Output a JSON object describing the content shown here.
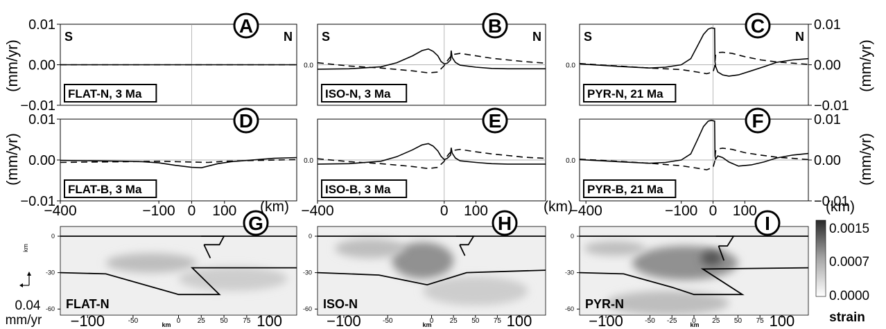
{
  "figure": {
    "velocity_ylabel": "(mm/yr)",
    "km_unit": "(km)",
    "cs_axis_label": "km",
    "scale_value": "0.04",
    "scale_unit": "mm/yr",
    "strain_label": "strain"
  },
  "chart_data": [
    {
      "id": "A",
      "type": "line",
      "letter": "A",
      "label": "FLAT-N, 3 Ma",
      "dir_left": "S",
      "dir_right": "N",
      "xlim": [
        -400,
        320
      ],
      "ylim": [
        -0.01,
        0.01
      ],
      "yticks": [
        "0.01",
        "0.00",
        "−0.01"
      ],
      "yticks_side": "left",
      "xticks": [],
      "series": [
        {
          "style": "solid",
          "x": [
            -400,
            320
          ],
          "y": [
            0,
            0
          ]
        },
        {
          "style": "dashed",
          "x": [
            -400,
            320
          ],
          "y": [
            0,
            0
          ]
        }
      ]
    },
    {
      "id": "B",
      "type": "line",
      "letter": "B",
      "label": "ISO-N, 3 Ma",
      "dir_left": "S",
      "dir_right": "N",
      "xlim": [
        -400,
        320
      ],
      "ylim": [
        -0.01,
        0.01
      ],
      "yticks": [],
      "ytick_inner": "0.0",
      "xticks": [],
      "series": [
        {
          "style": "solid",
          "x": [
            -400,
            -300,
            -200,
            -150,
            -100,
            -70,
            -50,
            -35,
            -20,
            -10,
            0,
            10,
            20,
            22,
            25,
            35,
            50,
            100,
            150,
            200,
            250,
            320
          ],
          "y": [
            -0.0011,
            -0.001,
            -0.0005,
            0.0005,
            0.0022,
            0.0035,
            0.0039,
            0.0033,
            0.0022,
            0.0008,
            0.0002,
            0.0004,
            0.0012,
            0.0035,
            0.0018,
            0.0006,
            -0.0001,
            -0.0006,
            -0.0009,
            -0.001,
            -0.001,
            -0.001
          ]
        },
        {
          "style": "dashed",
          "x": [
            -400,
            -300,
            -200,
            -100,
            -50,
            -20,
            0,
            5,
            15,
            25,
            50,
            100,
            150,
            200,
            250,
            320
          ],
          "y": [
            0.0005,
            -0.0003,
            -0.0008,
            -0.0015,
            -0.002,
            -0.0018,
            -0.0002,
            0.0005,
            0.0015,
            0.0025,
            0.0028,
            0.0022,
            0.0016,
            0.0012,
            0.0008,
            0.0004
          ]
        }
      ]
    },
    {
      "id": "C",
      "type": "line",
      "letter": "C",
      "label": "PYR-N, 21 Ma",
      "dir_left": "S",
      "dir_right": "N",
      "xlim": [
        -420,
        300
      ],
      "ylim": [
        -0.01,
        0.01
      ],
      "yticks": [
        "0.01",
        "0.00",
        "−0.01"
      ],
      "yticks_side": "right",
      "ytick_inner": "0.0",
      "xticks": [],
      "series": [
        {
          "style": "solid",
          "x": [
            -420,
            -300,
            -200,
            -150,
            -100,
            -70,
            -50,
            -30,
            -15,
            -5,
            5,
            6,
            8,
            15,
            30,
            50,
            80,
            120,
            160,
            200,
            250,
            300
          ],
          "y": [
            0.0002,
            -0.0004,
            -0.0008,
            -0.0006,
            0,
            0.0015,
            0.0045,
            0.0075,
            0.0088,
            0.0091,
            0.009,
            0.0008,
            -0.0004,
            -0.0018,
            -0.0025,
            -0.0028,
            -0.0025,
            -0.0015,
            -0.0005,
            0.0006,
            0.0012,
            0.0015
          ]
        },
        {
          "style": "dashed",
          "x": [
            -420,
            -300,
            -200,
            -100,
            -50,
            -20,
            0,
            5,
            8,
            15,
            30,
            60,
            100,
            150,
            200,
            250,
            300
          ],
          "y": [
            0.0003,
            -0.0003,
            -0.0008,
            -0.0012,
            -0.0018,
            -0.0022,
            -0.0018,
            -0.0005,
            0.0025,
            0.003,
            0.0031,
            0.0028,
            0.002,
            0.0012,
            0.0007,
            0.0004,
            0.0001
          ]
        }
      ]
    },
    {
      "id": "D",
      "type": "line",
      "letter": "D",
      "label": "FLAT-B, 3 Ma",
      "dir_left": "",
      "dir_right": "",
      "xlim": [
        -400,
        320
      ],
      "ylim": [
        -0.01,
        0.01
      ],
      "yticks": [
        "0.01",
        "0.00",
        "−0.01"
      ],
      "yticks_side": "left",
      "xticks": [
        {
          "v": -400,
          "t": "−400"
        },
        {
          "v": -100,
          "t": "−100"
        },
        {
          "v": 0,
          "t": "0"
        },
        {
          "v": 100,
          "t": "100"
        }
      ],
      "series": [
        {
          "style": "solid",
          "x": [
            -400,
            -300,
            -200,
            -150,
            -100,
            -50,
            0,
            30,
            50,
            80,
            120,
            200,
            250,
            320
          ],
          "y": [
            -0.0001,
            -0.0002,
            -0.0003,
            -0.0004,
            -0.0007,
            -0.0013,
            -0.0018,
            -0.0019,
            -0.0015,
            -0.0009,
            -0.0004,
            0.0001,
            0.0004,
            0.0006
          ]
        },
        {
          "style": "dashed",
          "x": [
            -400,
            -300,
            -200,
            -100,
            0,
            50,
            100,
            200,
            320
          ],
          "y": [
            -0.0006,
            -0.0005,
            -0.0004,
            -0.0003,
            -0.0005,
            -0.0006,
            -0.0003,
            -0.0001,
            0.0001
          ]
        }
      ]
    },
    {
      "id": "E",
      "type": "line",
      "letter": "E",
      "label": "ISO-B, 3 Ma",
      "dir_left": "",
      "dir_right": "",
      "xlim": [
        -400,
        320
      ],
      "ylim": [
        -0.01,
        0.01
      ],
      "yticks": [],
      "ytick_inner": "0.0",
      "xticks": [
        {
          "v": -400,
          "t": "−400"
        },
        {
          "v": 0,
          "t": "0"
        },
        {
          "v": 100,
          "t": "100"
        }
      ],
      "series": [
        {
          "style": "solid",
          "x": [
            -400,
            -300,
            -200,
            -150,
            -100,
            -70,
            -50,
            -35,
            -20,
            -10,
            0,
            10,
            20,
            22,
            25,
            35,
            50,
            100,
            150,
            200,
            250,
            320
          ],
          "y": [
            -0.001,
            -0.0009,
            -0.0003,
            0.0008,
            0.0025,
            0.0037,
            0.004,
            0.0034,
            0.0022,
            0.0009,
            0.0001,
            0.0004,
            0.0012,
            0.003,
            0.0017,
            0.0005,
            -0.0002,
            -0.0006,
            -0.0009,
            -0.001,
            -0.001,
            -0.001
          ]
        },
        {
          "style": "dashed",
          "x": [
            -400,
            -300,
            -200,
            -100,
            -50,
            -20,
            0,
            5,
            15,
            25,
            50,
            100,
            150,
            200,
            250,
            320
          ],
          "y": [
            0.0003,
            -0.0004,
            -0.0009,
            -0.0016,
            -0.0021,
            -0.0018,
            -0.0003,
            0.0005,
            0.0015,
            0.0023,
            0.0026,
            0.002,
            0.0015,
            0.0011,
            0.0007,
            0.0004
          ]
        }
      ]
    },
    {
      "id": "F",
      "type": "line",
      "letter": "F",
      "label": "PYR-B, 21 Ma",
      "dir_left": "",
      "dir_right": "",
      "xlim": [
        -420,
        300
      ],
      "ylim": [
        -0.01,
        0.01
      ],
      "yticks": [
        "0.01",
        "0.00",
        "−0.01"
      ],
      "yticks_side": "right",
      "ytick_inner": "0.0",
      "xticks": [
        {
          "v": -400,
          "t": "−400"
        },
        {
          "v": -100,
          "t": "−100"
        },
        {
          "v": 0,
          "t": "0"
        },
        {
          "v": 100,
          "t": "100"
        }
      ],
      "series": [
        {
          "style": "solid",
          "x": [
            -420,
            -300,
            -200,
            -150,
            -100,
            -70,
            -50,
            -30,
            -15,
            -5,
            5,
            6,
            8,
            15,
            30,
            50,
            80,
            120,
            160,
            200,
            250,
            300
          ],
          "y": [
            0.0001,
            -0.0004,
            -0.0008,
            -0.0006,
            0,
            0.0015,
            0.0048,
            0.0082,
            0.0095,
            0.0097,
            0.0095,
            0.001,
            0.0002,
            0.001,
            0.0006,
            -0.0005,
            -0.0015,
            -0.0012,
            -0.0005,
            0.0005,
            0.0012,
            0.0016
          ]
        },
        {
          "style": "dashed",
          "x": [
            -420,
            -300,
            -200,
            -100,
            -50,
            -20,
            0,
            5,
            8,
            15,
            30,
            60,
            100,
            150,
            200,
            250,
            300
          ],
          "y": [
            0.0002,
            -0.0003,
            -0.0008,
            -0.0014,
            -0.002,
            -0.0024,
            -0.0018,
            -0.0005,
            0.0022,
            0.0027,
            0.0029,
            0.0026,
            0.0018,
            0.0012,
            0.0007,
            0.0004,
            0.0001
          ]
        }
      ]
    },
    {
      "id": "G",
      "type": "cross-section",
      "letter": "G",
      "label": "FLAT-N",
      "xlim": [
        -130,
        130
      ],
      "ylim": [
        -65,
        8
      ],
      "xticks": [
        {
          "v": -100,
          "t": "−100",
          "big": true
        },
        {
          "v": -50,
          "t": "-50"
        },
        {
          "v": 0,
          "t": "0"
        },
        {
          "v": 25,
          "t": "25"
        },
        {
          "v": 50,
          "t": "50"
        },
        {
          "v": 75,
          "t": "75"
        },
        {
          "v": 100,
          "t": "100",
          "big": true
        }
      ],
      "yticks": [
        {
          "v": 0,
          "t": "0"
        },
        {
          "v": -30,
          "t": "-30"
        },
        {
          "v": -60,
          "t": "-60"
        }
      ],
      "lines": [
        {
          "x": [
            -130,
            130
          ],
          "y": [
            0,
            0
          ]
        },
        {
          "x": [
            25,
            50,
            45,
            28
          ],
          "y": [
            0,
            0,
            -7,
            -7
          ]
        },
        {
          "x": [
            28,
            35
          ],
          "y": [
            -7,
            -18
          ]
        },
        {
          "x": [
            -130,
            -80,
            0,
            45,
            15,
            130
          ],
          "y": [
            -30,
            -31,
            -48,
            -48,
            -26,
            -26
          ]
        }
      ],
      "shading": [
        {
          "cx": -30,
          "cy": -22,
          "rx": 50,
          "ry": 8,
          "v": 0.3
        },
        {
          "cx": 60,
          "cy": -35,
          "rx": 60,
          "ry": 10,
          "v": 0.2
        }
      ]
    },
    {
      "id": "H",
      "type": "cross-section",
      "letter": "H",
      "label": "ISO-N",
      "xlim": [
        -130,
        130
      ],
      "ylim": [
        -65,
        8
      ],
      "xticks": [
        {
          "v": -100,
          "t": "−100",
          "big": true
        },
        {
          "v": -50,
          "t": "-50"
        },
        {
          "v": 0,
          "t": "0"
        },
        {
          "v": 25,
          "t": "25"
        },
        {
          "v": 50,
          "t": "50"
        },
        {
          "v": 75,
          "t": "75"
        },
        {
          "v": 100,
          "t": "100",
          "big": true
        }
      ],
      "yticks": [
        {
          "v": 0,
          "t": "0"
        },
        {
          "v": -30,
          "t": "-30"
        },
        {
          "v": -60,
          "t": "-60"
        }
      ],
      "lines": [
        {
          "x": [
            -130,
            130
          ],
          "y": [
            0,
            0
          ]
        },
        {
          "x": [
            28,
            48,
            42,
            32
          ],
          "y": [
            0,
            0,
            -7,
            -7
          ]
        },
        {
          "x": [
            32,
            38
          ],
          "y": [
            -7,
            -16
          ]
        },
        {
          "x": [
            -130,
            -60,
            -5,
            40,
            130
          ],
          "y": [
            -30,
            -32,
            -40,
            -30,
            -28
          ]
        }
      ],
      "shading": [
        {
          "cx": -10,
          "cy": -20,
          "rx": 35,
          "ry": 15,
          "v": 0.6
        },
        {
          "cx": -70,
          "cy": -10,
          "rx": 40,
          "ry": 8,
          "v": 0.3
        },
        {
          "cx": 50,
          "cy": -45,
          "rx": 60,
          "ry": 12,
          "v": 0.2
        }
      ]
    },
    {
      "id": "I",
      "type": "cross-section",
      "letter": "I",
      "label": "PYR-N",
      "xlim": [
        -130,
        130
      ],
      "ylim": [
        -65,
        8
      ],
      "xticks": [
        {
          "v": -100,
          "t": "−100",
          "big": true
        },
        {
          "v": -50,
          "t": "-50"
        },
        {
          "v": -25,
          "t": "-25"
        },
        {
          "v": 0,
          "t": "0"
        },
        {
          "v": 25,
          "t": "25"
        },
        {
          "v": 50,
          "t": "50"
        },
        {
          "v": 75,
          "t": "75"
        },
        {
          "v": 100,
          "t": "100",
          "big": true
        }
      ],
      "yticks": [
        {
          "v": 0,
          "t": "0"
        },
        {
          "v": -30,
          "t": "-30"
        },
        {
          "v": -60,
          "t": "-60"
        }
      ],
      "lines": [
        {
          "x": [
            -130,
            130
          ],
          "y": [
            0,
            0
          ]
        },
        {
          "x": [
            25,
            45,
            38,
            28
          ],
          "y": [
            0,
            0,
            -8,
            -8
          ]
        },
        {
          "x": [
            28,
            34
          ],
          "y": [
            -8,
            -20
          ]
        },
        {
          "x": [
            -130,
            -80,
            -25,
            0,
            55,
            10,
            130
          ],
          "y": [
            -30,
            -31,
            -42,
            -48,
            -48,
            -27,
            -26
          ]
        }
      ],
      "shading": [
        {
          "cx": -10,
          "cy": -22,
          "rx": 60,
          "ry": 14,
          "v": 0.6
        },
        {
          "cx": 20,
          "cy": -18,
          "rx": 12,
          "ry": 6,
          "v": 1.0
        },
        {
          "cx": -30,
          "cy": -55,
          "rx": 70,
          "ry": 10,
          "v": 0.3
        },
        {
          "cx": -90,
          "cy": -10,
          "rx": 35,
          "ry": 6,
          "v": 0.3
        }
      ]
    },
    {
      "id": "colorbar",
      "type": "heatmap",
      "title": "strain",
      "ticks": [
        "0.0015",
        "0.0007",
        "0.0000"
      ],
      "vmin": 0,
      "vmax": 0.0015
    }
  ]
}
